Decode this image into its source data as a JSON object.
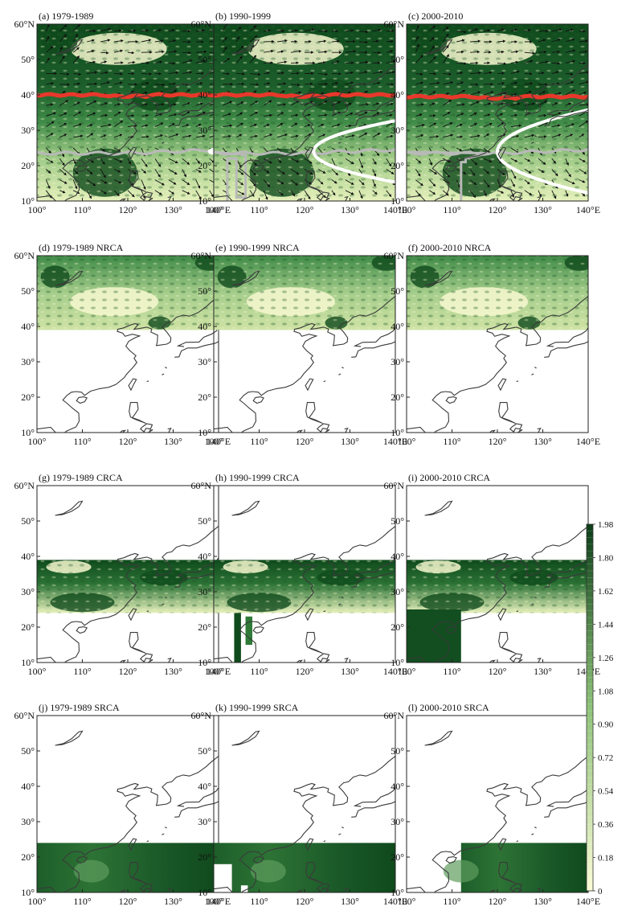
{
  "panels": [
    {
      "id": "a",
      "label": "(a) 1979-1989",
      "type": "wind",
      "red_lat": 40,
      "white": {
        "tip": 138,
        "half_width": 2
      }
    },
    {
      "id": "b",
      "label": "(b) 1990-1999",
      "type": "wind",
      "red_lat": 40,
      "white": {
        "tip": 122,
        "half_width": 7
      }
    },
    {
      "id": "c",
      "label": "(c) 2000-2010",
      "type": "wind",
      "red_lat": 39.5,
      "white": {
        "tip": 120,
        "half_width": 9
      }
    },
    {
      "id": "d",
      "label": "(d) 1979-1989 NRCA",
      "type": "nrca"
    },
    {
      "id": "e",
      "label": "(e) 1990-1999 NRCA",
      "type": "nrca"
    },
    {
      "id": "f",
      "label": "(f) 2000-2010 NRCA",
      "type": "nrca"
    },
    {
      "id": "g",
      "label": "(g) 1979-1989 CRCA",
      "type": "crca",
      "variant": 0
    },
    {
      "id": "h",
      "label": "(h) 1990-1999 CRCA",
      "type": "crca",
      "variant": 1
    },
    {
      "id": "i",
      "label": "(i) 2000-2010 CRCA",
      "type": "crca",
      "variant": 2
    },
    {
      "id": "j",
      "label": "(j) 1979-1989 SRCA",
      "type": "srca",
      "variant": 0
    },
    {
      "id": "k",
      "label": "(k) 1990-1999 SRCA",
      "type": "srca",
      "variant": 1
    },
    {
      "id": "l",
      "label": "(l) 2000-2010 SRCA",
      "type": "srca",
      "variant": 2
    }
  ],
  "axes": {
    "lon_ticks": [
      "100°",
      "110°",
      "120°",
      "130°",
      "140°E"
    ],
    "lat_ticks": [
      "10°",
      "20°",
      "30°",
      "40°",
      "50°",
      "60°N"
    ],
    "lon_range": [
      100,
      140
    ],
    "lat_range": [
      10,
      60
    ]
  },
  "colorbar": {
    "labels": [
      "1.98",
      "1.80",
      "1.62",
      "1.44",
      "1.26",
      "1.08",
      "0.90",
      "0.72",
      "0.54",
      "0.36",
      "0.18",
      "0"
    ],
    "min": 0,
    "max": 1.98,
    "colors": {
      "low": "#fbfbd6",
      "mid": "#8ec279",
      "high": "#0b3d17"
    }
  }
}
